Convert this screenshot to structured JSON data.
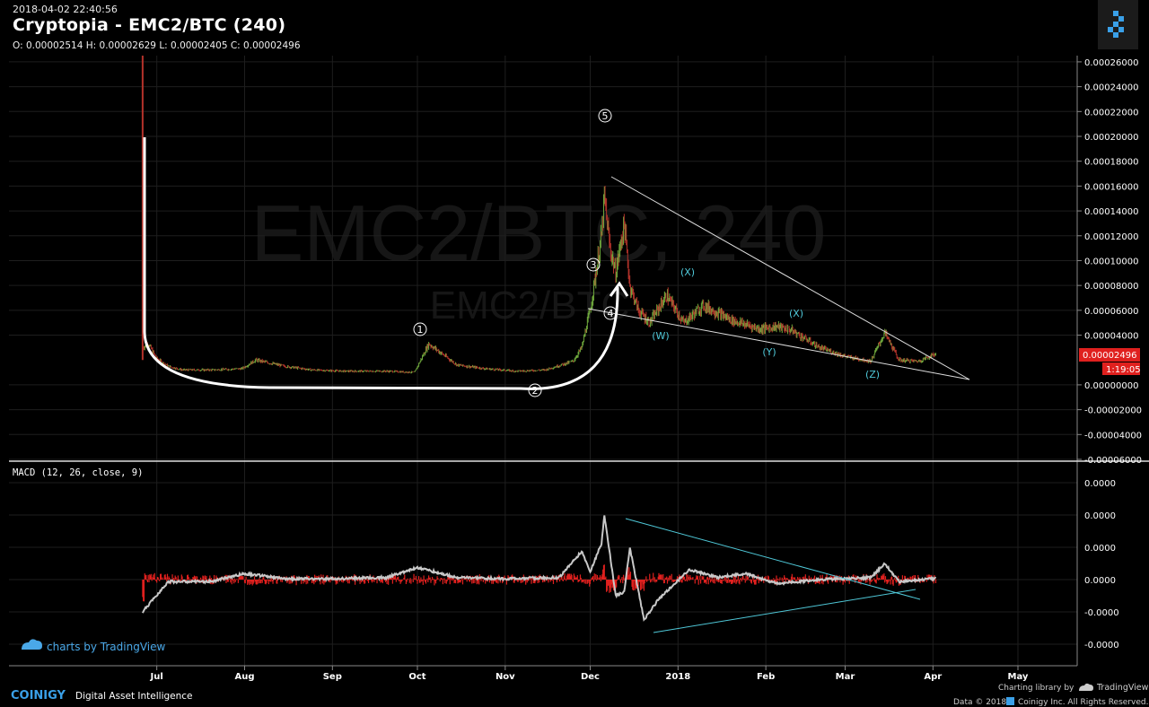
{
  "header": {
    "timestamp": "2018-04-02 22:40:56",
    "title": "Cryptopia - EMC2/BTC (240)",
    "ohlc": "O: 0.00002514 H: 0.00002629 L: 0.00002405 C: 0.00002496"
  },
  "watermark": {
    "main": "EMC2/BTC, 240",
    "sub": "EMC2/BTC"
  },
  "price_tag": {
    "value": "0.00002496",
    "countdown": "1:19:05",
    "color": "#e0201e"
  },
  "macd": {
    "label": "MACD (12, 26, close, 9)",
    "ticks": [
      "0.0000",
      "0.0000",
      "0.0000",
      "0.0000",
      "-0.0000",
      "-0.0000"
    ]
  },
  "footer": {
    "brand": "COINIGY",
    "tagline": "Digital Asset Intelligence",
    "charting": "Charting library by",
    "tv": "TradingView",
    "rights": "Data © 2018",
    "rights2": "Coinigy Inc. All Rights Reserved.",
    "tv_badge": "charts by TradingView"
  },
  "colors": {
    "up": "#6fa83c",
    "down": "#b3322a",
    "annotation": "#ffffff",
    "wave": "#4fc8d8",
    "macd_line": "#c8c8c8",
    "histogram": "#e0201e"
  },
  "chart_data": [
    {
      "type": "candlestick",
      "title": "Cryptopia - EMC2/BTC (240)",
      "x_ticks": [
        "Jul",
        "Aug",
        "Sep",
        "Oct",
        "Nov",
        "Dec",
        "2018",
        "Feb",
        "Mar",
        "Apr",
        "May"
      ],
      "y_ticks": [
        "0.00026000",
        "0.00024000",
        "0.00022000",
        "0.00020000",
        "0.00018000",
        "0.00016000",
        "0.00014000",
        "0.00012000",
        "0.00010000",
        "0.00008000",
        "0.00006000",
        "0.00004000",
        "0.00000000",
        "-0.00002000",
        "-0.00004000",
        "-0.00006000"
      ],
      "ylim": [
        -6e-05,
        0.000265
      ],
      "series": [
        {
          "x": [
            "2017-06-26",
            "2017-06-28",
            "2017-07-01",
            "2017-07-05",
            "2017-07-10",
            "2017-07-20",
            "2017-07-31",
            "2017-08-05",
            "2017-08-15",
            "2017-08-25",
            "2017-09-05",
            "2017-09-20",
            "2017-09-30",
            "2017-10-05",
            "2017-10-15",
            "2017-10-25",
            "2017-11-05",
            "2017-11-15",
            "2017-11-25",
            "2017-11-28",
            "2017-12-01",
            "2017-12-03",
            "2017-12-05",
            "2017-12-06",
            "2017-12-08",
            "2017-12-10",
            "2017-12-13",
            "2017-12-15",
            "2017-12-18",
            "2017-12-22",
            "2017-12-28",
            "2018-01-03",
            "2018-01-10",
            "2018-01-15",
            "2018-01-20",
            "2018-01-30",
            "2018-02-05",
            "2018-02-10",
            "2018-02-20",
            "2018-03-01",
            "2018-03-10",
            "2018-03-15",
            "2018-03-20",
            "2018-03-27",
            "2018-04-02"
          ],
          "y": [
            3e-05,
            3.3e-05,
            2.1e-05,
            1.5e-05,
            1.2e-05,
            1.2e-05,
            1.3e-05,
            2e-05,
            1.5e-05,
            1.2e-05,
            1.1e-05,
            1.1e-05,
            1e-05,
            3.3e-05,
            1.6e-05,
            1.3e-05,
            1.1e-05,
            1.2e-05,
            1.9e-05,
            3e-05,
            6e-05,
            9e-05,
            0.00012,
            0.00015,
            0.00011,
            9e-05,
            0.00013,
            8e-05,
            6e-05,
            5e-05,
            7.2e-05,
            5e-05,
            6.4e-05,
            5.8e-05,
            5.2e-05,
            4.5e-05,
            4.7e-05,
            4.4e-05,
            3e-05,
            2.3e-05,
            1.9e-05,
            4.2e-05,
            2e-05,
            1.9e-05,
            2.5e-05
          ]
        }
      ]
    },
    {
      "type": "line",
      "title": "MACD (12, 26, close, 9)",
      "series": [
        {
          "x": [
            "2017-06-26",
            "2017-07-05",
            "2017-07-20",
            "2017-08-01",
            "2017-08-15",
            "2017-09-01",
            "2017-09-20",
            "2017-10-01",
            "2017-10-15",
            "2017-11-01",
            "2017-11-20",
            "2017-11-28",
            "2017-12-01",
            "2017-12-05",
            "2017-12-06",
            "2017-12-10",
            "2017-12-13",
            "2017-12-15",
            "2017-12-20",
            "2017-12-25",
            "2018-01-05",
            "2018-01-15",
            "2018-01-25",
            "2018-02-05",
            "2018-02-20",
            "2018-03-01",
            "2018-03-10",
            "2018-03-15",
            "2018-03-20",
            "2018-04-02"
          ],
          "y": [
            -0.8,
            -0.05,
            -0.05,
            0.15,
            0.02,
            0.02,
            0.05,
            0.3,
            0.05,
            0.02,
            0.05,
            0.7,
            0.2,
            0.9,
            1.6,
            -0.4,
            -0.3,
            0.8,
            -1.0,
            -0.5,
            0.25,
            0.05,
            0.15,
            -0.1,
            0.0,
            0.02,
            0.05,
            0.4,
            -0.05,
            0.03
          ]
        }
      ]
    }
  ]
}
